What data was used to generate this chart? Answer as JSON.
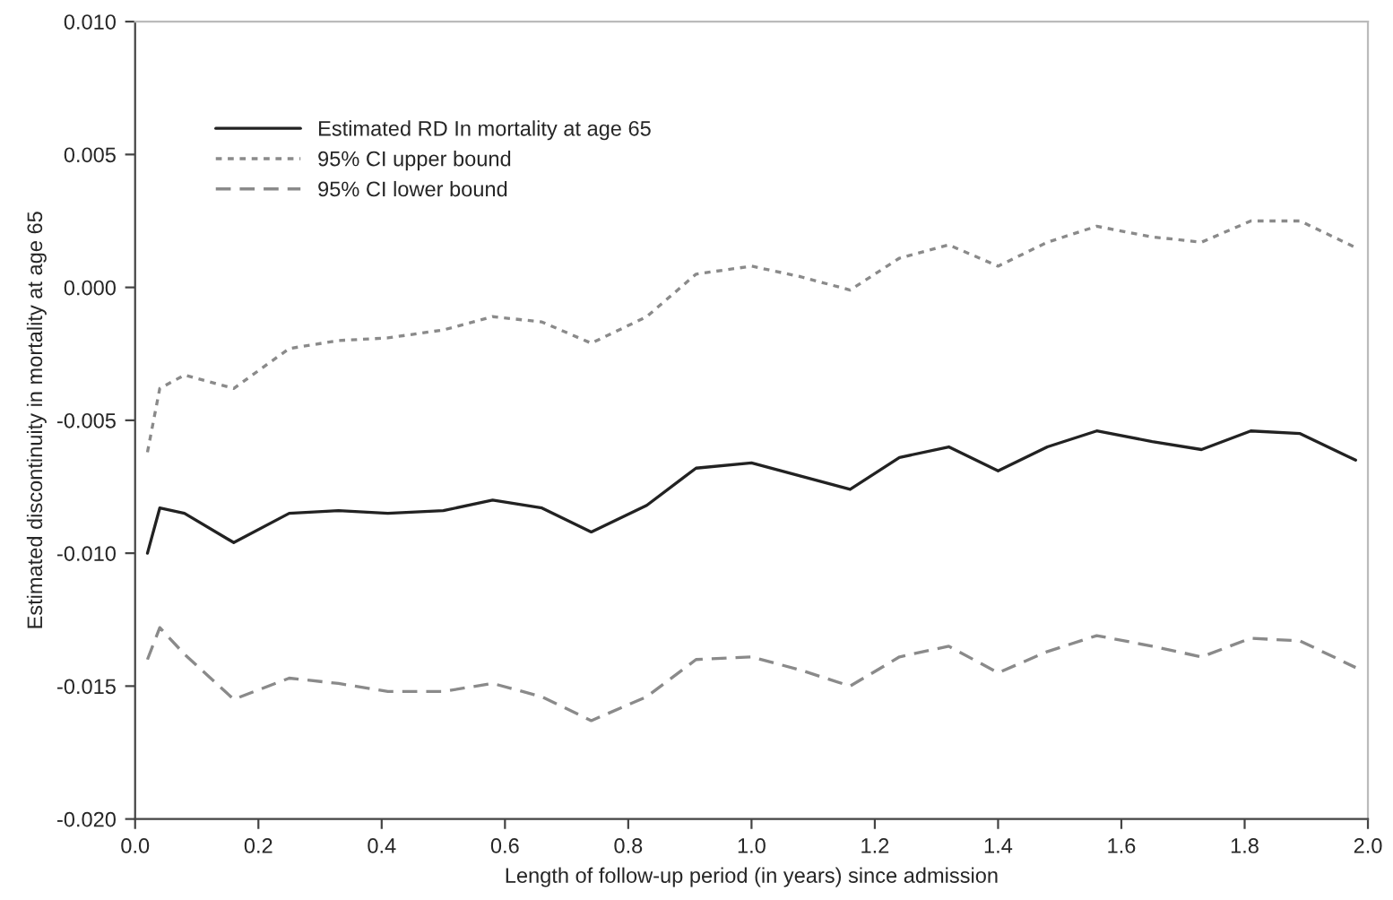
{
  "chart_data": {
    "type": "line",
    "xlabel": "Length of follow-up period (in years) since admission",
    "ylabel": "Estimated discontinuity in mortality at age 65",
    "x": [
      0.02,
      0.04,
      0.08,
      0.16,
      0.25,
      0.33,
      0.41,
      0.5,
      0.58,
      0.66,
      0.74,
      0.83,
      0.91,
      1.0,
      1.08,
      1.16,
      1.24,
      1.32,
      1.4,
      1.48,
      1.56,
      1.65,
      1.73,
      1.81,
      1.89,
      1.98
    ],
    "series": [
      {
        "name": "Estimated RD In mortality at age 65",
        "color": "#222222",
        "line_style": "solid",
        "values": [
          -0.01,
          -0.0083,
          -0.0085,
          -0.0096,
          -0.0085,
          -0.0084,
          -0.0085,
          -0.0084,
          -0.008,
          -0.0083,
          -0.0092,
          -0.0082,
          -0.0068,
          -0.0066,
          -0.0071,
          -0.0076,
          -0.0064,
          -0.006,
          -0.0069,
          -0.006,
          -0.0054,
          -0.0058,
          -0.0061,
          -0.0054,
          -0.0055,
          -0.0065
        ]
      },
      {
        "name": "95% CI upper bound",
        "color": "#8a8a8a",
        "line_style": "dotted",
        "values": [
          -0.0062,
          -0.0038,
          -0.0033,
          -0.0038,
          -0.0023,
          -0.002,
          -0.0019,
          -0.0016,
          -0.0011,
          -0.0013,
          -0.0021,
          -0.0011,
          0.0005,
          0.0008,
          0.0004,
          -0.0001,
          0.0011,
          0.0016,
          0.0008,
          0.0017,
          0.0023,
          0.0019,
          0.0017,
          0.0025,
          0.0025,
          0.0015
        ]
      },
      {
        "name": "95% CI lower bound",
        "color": "#8a8a8a",
        "line_style": "dashed",
        "values": [
          -0.014,
          -0.0128,
          -0.0138,
          -0.0155,
          -0.0147,
          -0.0149,
          -0.0152,
          -0.0152,
          -0.0149,
          -0.0154,
          -0.0163,
          -0.0154,
          -0.014,
          -0.0139,
          -0.0144,
          -0.015,
          -0.0139,
          -0.0135,
          -0.0145,
          -0.0137,
          -0.0131,
          -0.0135,
          -0.0139,
          -0.0132,
          -0.0133,
          -0.0143
        ]
      }
    ],
    "xlim": [
      0,
      2.0
    ],
    "xticks": [
      {
        "value": 0,
        "label": "0.0"
      },
      0.2,
      0.4,
      0.6,
      0.8,
      {
        "value": 1,
        "label": "1.0"
      },
      1.2,
      1.4,
      1.6,
      1.8,
      {
        "value": 2,
        "label": "2.0"
      }
    ],
    "ylim": [
      -0.02,
      0.01
    ],
    "yticks": [
      {
        "value": -0.02,
        "label": "-0.020"
      },
      {
        "value": -0.015,
        "label": "-0.015"
      },
      {
        "value": -0.01,
        "label": "-0.010"
      },
      {
        "value": -0.005,
        "label": "-0.005"
      },
      {
        "value": 0,
        "label": "0.000"
      },
      {
        "value": 0.005,
        "label": "0.005"
      },
      {
        "value": 0.01,
        "label": "0.010"
      }
    ],
    "grid": false,
    "legend": "top left"
  }
}
